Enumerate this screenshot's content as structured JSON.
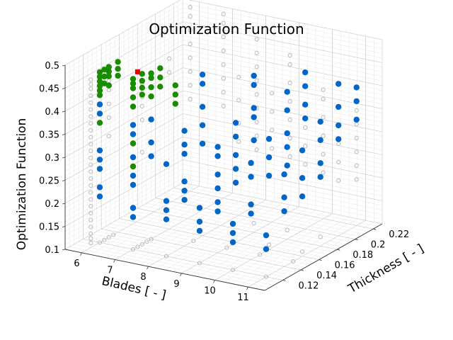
{
  "chart_data": {
    "type": "scatter",
    "projection": "3d",
    "title": "Optimization Function",
    "xlabel": "Blades [ - ]",
    "ylabel": "Thickness [ - ]",
    "zlabel": "Optimization Function",
    "xlim": [
      5.5,
      11.5
    ],
    "ylim": [
      0.1,
      0.23
    ],
    "zlim": [
      0.1,
      0.5
    ],
    "xticks": [
      "6",
      "7",
      "8",
      "9",
      "10",
      "11"
    ],
    "yticks": [
      "0.12",
      "0.14",
      "0.16",
      "0.18",
      "0.2",
      "0.22"
    ],
    "zticks": [
      "0.1",
      "0.15",
      "0.2",
      "0.25",
      "0.3",
      "0.35",
      "0.4",
      "0.45",
      "0.5"
    ],
    "grid": true,
    "colors": {
      "all_designs": "#b4b4b4",
      "feasible": "#0066c8",
      "pareto": "#1a8c00",
      "optimum": "#e60000"
    },
    "series": [
      {
        "key": "all",
        "marker": "hollow-circle",
        "points": [
          [
            6,
            0.11,
            0.11
          ],
          [
            6,
            0.11,
            0.12
          ],
          [
            6,
            0.11,
            0.13
          ],
          [
            6,
            0.11,
            0.145
          ],
          [
            6,
            0.11,
            0.16
          ],
          [
            6,
            0.11,
            0.175
          ],
          [
            6,
            0.11,
            0.19
          ],
          [
            6,
            0.11,
            0.205
          ],
          [
            6,
            0.11,
            0.22
          ],
          [
            6,
            0.11,
            0.235
          ],
          [
            6,
            0.11,
            0.25
          ],
          [
            6,
            0.11,
            0.265
          ],
          [
            6,
            0.11,
            0.28
          ],
          [
            6,
            0.11,
            0.295
          ],
          [
            6,
            0.11,
            0.31
          ],
          [
            6,
            0.11,
            0.325
          ],
          [
            6,
            0.11,
            0.34
          ],
          [
            6,
            0.11,
            0.355
          ],
          [
            6,
            0.11,
            0.37
          ],
          [
            6,
            0.11,
            0.385
          ],
          [
            6,
            0.11,
            0.4
          ],
          [
            6,
            0.11,
            0.415
          ],
          [
            6,
            0.11,
            0.43
          ],
          [
            6,
            0.11,
            0.445
          ],
          [
            6,
            0.11,
            0.455
          ],
          [
            6,
            0.11,
            0.465
          ],
          [
            6,
            0.12,
            0.1
          ],
          [
            6,
            0.125,
            0.1
          ],
          [
            6,
            0.13,
            0.1
          ],
          [
            6,
            0.135,
            0.1
          ],
          [
            7,
            0.12,
            0.1
          ],
          [
            7,
            0.125,
            0.1
          ],
          [
            7,
            0.13,
            0.1
          ],
          [
            7,
            0.135,
            0.1
          ],
          [
            7,
            0.14,
            0.1
          ],
          [
            8,
            0.12,
            0.1
          ],
          [
            8,
            0.15,
            0.1
          ],
          [
            9,
            0.12,
            0.1
          ],
          [
            9,
            0.15,
            0.1
          ],
          [
            10,
            0.12,
            0.1
          ],
          [
            10,
            0.15,
            0.1
          ],
          [
            11,
            0.12,
            0.1
          ],
          [
            11,
            0.15,
            0.1
          ],
          [
            6,
            0.13,
            0.44
          ],
          [
            6,
            0.13,
            0.42
          ],
          [
            6,
            0.13,
            0.39
          ],
          [
            6,
            0.13,
            0.36
          ],
          [
            6,
            0.13,
            0.32
          ],
          [
            7,
            0.13,
            0.45
          ],
          [
            7,
            0.13,
            0.42
          ],
          [
            7,
            0.13,
            0.4
          ],
          [
            7,
            0.13,
            0.37
          ],
          [
            7,
            0.13,
            0.3
          ],
          [
            7,
            0.16,
            0.47
          ],
          [
            7,
            0.16,
            0.44
          ],
          [
            6,
            0.22,
            0.3
          ],
          [
            6,
            0.22,
            0.33
          ],
          [
            6,
            0.22,
            0.36
          ],
          [
            6,
            0.22,
            0.39
          ],
          [
            6,
            0.22,
            0.42
          ],
          [
            6,
            0.22,
            0.45
          ],
          [
            6,
            0.22,
            0.48
          ],
          [
            6,
            0.22,
            0.5
          ],
          [
            7,
            0.22,
            0.3
          ],
          [
            7,
            0.22,
            0.33
          ],
          [
            7,
            0.22,
            0.36
          ],
          [
            7,
            0.22,
            0.39
          ],
          [
            7,
            0.22,
            0.42
          ],
          [
            7,
            0.22,
            0.45
          ],
          [
            7,
            0.22,
            0.48
          ],
          [
            7,
            0.22,
            0.5
          ],
          [
            8,
            0.22,
            0.22
          ],
          [
            8,
            0.22,
            0.25
          ],
          [
            8,
            0.22,
            0.28
          ],
          [
            8,
            0.22,
            0.31
          ],
          [
            8,
            0.22,
            0.34
          ],
          [
            8,
            0.22,
            0.37
          ],
          [
            8,
            0.22,
            0.4
          ],
          [
            8,
            0.22,
            0.43
          ],
          [
            8,
            0.22,
            0.46
          ],
          [
            9,
            0.22,
            0.22
          ],
          [
            9,
            0.22,
            0.26
          ],
          [
            9,
            0.22,
            0.3
          ],
          [
            9,
            0.22,
            0.34
          ],
          [
            9,
            0.22,
            0.38
          ],
          [
            9,
            0.22,
            0.42
          ],
          [
            9,
            0.22,
            0.44
          ],
          [
            10,
            0.22,
            0.2
          ],
          [
            10,
            0.22,
            0.24
          ],
          [
            10,
            0.22,
            0.28
          ],
          [
            10,
            0.22,
            0.32
          ],
          [
            10,
            0.22,
            0.36
          ],
          [
            10,
            0.22,
            0.38
          ],
          [
            11,
            0.22,
            0.2
          ],
          [
            11,
            0.22,
            0.23
          ],
          [
            11,
            0.22,
            0.26
          ],
          [
            11,
            0.22,
            0.29
          ],
          [
            11,
            0.22,
            0.32
          ],
          [
            11,
            0.22,
            0.35
          ],
          [
            8,
            0.2,
            0.26
          ],
          [
            8,
            0.2,
            0.3
          ],
          [
            8,
            0.2,
            0.35
          ],
          [
            8,
            0.2,
            0.4
          ],
          [
            9,
            0.2,
            0.26
          ],
          [
            9,
            0.2,
            0.3
          ],
          [
            9,
            0.2,
            0.34
          ],
          [
            9,
            0.2,
            0.38
          ],
          [
            10,
            0.2,
            0.24
          ],
          [
            10,
            0.2,
            0.28
          ],
          [
            10,
            0.2,
            0.32
          ],
          [
            11,
            0.2,
            0.22
          ],
          [
            11,
            0.2,
            0.26
          ],
          [
            11,
            0.2,
            0.3
          ],
          [
            9,
            0.18,
            0.12
          ],
          [
            10,
            0.18,
            0.12
          ],
          [
            11,
            0.18,
            0.12
          ],
          [
            10,
            0.16,
            0.11
          ],
          [
            11,
            0.16,
            0.11
          ]
        ]
      },
      {
        "key": "feasible",
        "marker": "filled-circle",
        "points": [
          [
            6,
            0.12,
            0.4
          ],
          [
            6,
            0.12,
            0.38
          ],
          [
            6,
            0.12,
            0.3
          ],
          [
            6,
            0.12,
            0.28
          ],
          [
            6,
            0.12,
            0.26
          ],
          [
            6,
            0.12,
            0.22
          ],
          [
            6,
            0.12,
            0.2
          ],
          [
            7,
            0.12,
            0.37
          ],
          [
            7,
            0.12,
            0.35
          ],
          [
            7,
            0.12,
            0.3
          ],
          [
            7,
            0.12,
            0.26
          ],
          [
            7,
            0.12,
            0.24
          ],
          [
            7,
            0.12,
            0.19
          ],
          [
            7,
            0.12,
            0.17
          ],
          [
            8,
            0.12,
            0.3
          ],
          [
            8,
            0.12,
            0.22
          ],
          [
            8,
            0.12,
            0.2
          ],
          [
            8,
            0.12,
            0.18
          ],
          [
            9,
            0.12,
            0.22
          ],
          [
            9,
            0.12,
            0.19
          ],
          [
            9,
            0.12,
            0.17
          ],
          [
            10,
            0.12,
            0.2
          ],
          [
            10,
            0.12,
            0.18
          ],
          [
            10,
            0.12,
            0.16
          ],
          [
            11,
            0.12,
            0.19
          ],
          [
            11,
            0.12,
            0.16
          ],
          [
            7,
            0.14,
            0.36
          ],
          [
            7,
            0.14,
            0.31
          ],
          [
            7,
            0.14,
            0.28
          ],
          [
            8,
            0.14,
            0.35
          ],
          [
            8,
            0.14,
            0.32
          ],
          [
            8,
            0.14,
            0.3
          ],
          [
            8,
            0.14,
            0.24
          ],
          [
            8,
            0.14,
            0.22
          ],
          [
            8,
            0.14,
            0.2
          ],
          [
            9,
            0.14,
            0.33
          ],
          [
            9,
            0.14,
            0.31
          ],
          [
            9,
            0.14,
            0.27
          ],
          [
            9,
            0.14,
            0.24
          ],
          [
            9,
            0.14,
            0.21
          ],
          [
            9,
            0.14,
            0.19
          ],
          [
            10,
            0.14,
            0.31
          ],
          [
            10,
            0.14,
            0.28
          ],
          [
            10,
            0.14,
            0.22
          ],
          [
            10,
            0.14,
            0.2
          ],
          [
            11,
            0.14,
            0.3
          ],
          [
            11,
            0.14,
            0.25
          ],
          [
            11,
            0.14,
            0.22
          ],
          [
            8,
            0.16,
            0.45
          ],
          [
            8,
            0.16,
            0.43
          ],
          [
            8,
            0.16,
            0.38
          ],
          [
            8,
            0.16,
            0.34
          ],
          [
            8,
            0.16,
            0.3
          ],
          [
            9,
            0.16,
            0.36
          ],
          [
            9,
            0.16,
            0.33
          ],
          [
            9,
            0.16,
            0.29
          ],
          [
            9,
            0.16,
            0.26
          ],
          [
            9,
            0.16,
            0.23
          ],
          [
            10,
            0.16,
            0.34
          ],
          [
            10,
            0.16,
            0.3
          ],
          [
            10,
            0.16,
            0.26
          ],
          [
            11,
            0.16,
            0.33
          ],
          [
            11,
            0.16,
            0.27
          ],
          [
            11,
            0.16,
            0.23
          ],
          [
            9,
            0.18,
            0.44
          ],
          [
            9,
            0.18,
            0.42
          ],
          [
            9,
            0.18,
            0.37
          ],
          [
            9,
            0.18,
            0.35
          ],
          [
            9,
            0.18,
            0.3
          ],
          [
            10,
            0.18,
            0.42
          ],
          [
            10,
            0.18,
            0.38
          ],
          [
            10,
            0.18,
            0.33
          ],
          [
            10,
            0.18,
            0.3
          ],
          [
            10,
            0.18,
            0.26
          ],
          [
            11,
            0.18,
            0.37
          ],
          [
            11,
            0.18,
            0.33
          ],
          [
            11,
            0.18,
            0.28
          ],
          [
            11,
            0.18,
            0.25
          ],
          [
            10,
            0.2,
            0.44
          ],
          [
            10,
            0.2,
            0.41
          ],
          [
            10,
            0.2,
            0.37
          ],
          [
            10,
            0.2,
            0.34
          ],
          [
            11,
            0.2,
            0.43
          ],
          [
            11,
            0.2,
            0.38
          ],
          [
            11,
            0.2,
            0.34
          ],
          [
            11,
            0.2,
            0.31
          ],
          [
            11,
            0.22,
            0.4
          ],
          [
            11,
            0.22,
            0.37
          ],
          [
            11,
            0.22,
            0.33
          ]
        ]
      },
      {
        "key": "pareto",
        "marker": "filled-circle",
        "points": [
          [
            6,
            0.12,
            0.47
          ],
          [
            6,
            0.12,
            0.46
          ],
          [
            6,
            0.12,
            0.45
          ],
          [
            6,
            0.12,
            0.44
          ],
          [
            6,
            0.12,
            0.43
          ],
          [
            6,
            0.12,
            0.42
          ],
          [
            6,
            0.12,
            0.36
          ],
          [
            6,
            0.125,
            0.47
          ],
          [
            6,
            0.125,
            0.455
          ],
          [
            6,
            0.125,
            0.44
          ],
          [
            6,
            0.13,
            0.47
          ],
          [
            6,
            0.13,
            0.46
          ],
          [
            6,
            0.13,
            0.45
          ],
          [
            6,
            0.13,
            0.43
          ],
          [
            6,
            0.14,
            0.47
          ],
          [
            6,
            0.14,
            0.455
          ],
          [
            6,
            0.14,
            0.44
          ],
          [
            7,
            0.12,
            0.47
          ],
          [
            7,
            0.12,
            0.46
          ],
          [
            7,
            0.12,
            0.45
          ],
          [
            7,
            0.12,
            0.43
          ],
          [
            7,
            0.12,
            0.41
          ],
          [
            7,
            0.12,
            0.33
          ],
          [
            7,
            0.12,
            0.28
          ],
          [
            7,
            0.13,
            0.47
          ],
          [
            7,
            0.13,
            0.455
          ],
          [
            7,
            0.13,
            0.44
          ],
          [
            7,
            0.13,
            0.425
          ],
          [
            7,
            0.14,
            0.46
          ],
          [
            7,
            0.14,
            0.45
          ],
          [
            7,
            0.14,
            0.43
          ],
          [
            7,
            0.14,
            0.41
          ],
          [
            8,
            0.13,
            0.46
          ],
          [
            8,
            0.13,
            0.44
          ],
          [
            8,
            0.13,
            0.42
          ],
          [
            7,
            0.15,
            0.46
          ],
          [
            7,
            0.15,
            0.44
          ],
          [
            7,
            0.15,
            0.42
          ]
        ]
      },
      {
        "key": "optimum",
        "marker": "filled-square",
        "points": [
          [
            7,
            0.125,
            0.48
          ]
        ]
      }
    ]
  }
}
